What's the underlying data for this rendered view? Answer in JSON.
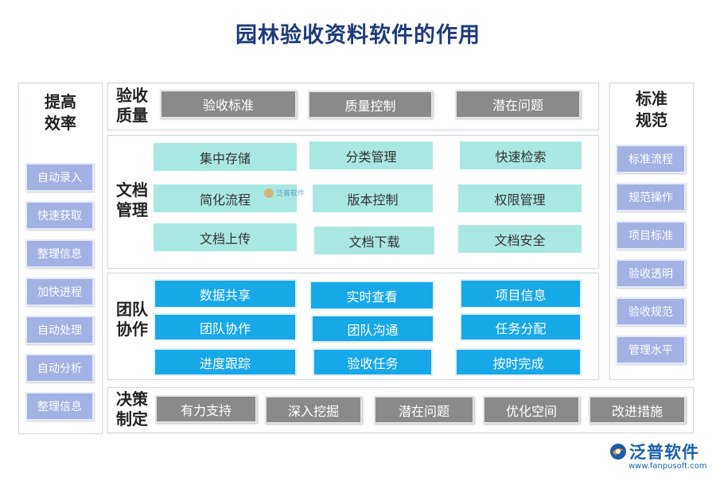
{
  "title": "园林验收资料软件的作用",
  "left_panel": {
    "title": "提高效率",
    "items": [
      "自动录入",
      "快速获取",
      "整理信息",
      "加快进程",
      "自动处理",
      "自动分析",
      "整理信息"
    ]
  },
  "right_panel": {
    "title": "标准规范",
    "items": [
      "标准流程",
      "规范操作",
      "项目标准",
      "验收透明",
      "验收规范",
      "管理水平"
    ]
  },
  "rows": {
    "quality": {
      "label": "验收质量",
      "items": [
        "验收标准",
        "质量控制",
        "潜在问题"
      ]
    },
    "docs": {
      "label": "文档管理",
      "items": [
        "集中存储",
        "分类管理",
        "快速检索",
        "简化流程",
        "版本控制",
        "权限管理",
        "文档上传",
        "文档下载",
        "文档安全"
      ]
    },
    "team": {
      "label": "团队协作",
      "items": [
        "数据共享",
        "实时查看",
        "项目信息",
        "团队协作",
        "团队沟通",
        "任务分配",
        "进度跟踪",
        "验收任务",
        "按时完成"
      ]
    },
    "decision": {
      "label": "决策制定",
      "items": [
        "有力支持",
        "深入挖掘",
        "潜在问题",
        "优化空间",
        "改进措施"
      ]
    }
  },
  "watermark": "泛普软件",
  "logo": {
    "name": "泛普软件",
    "url": "www.fanpusoft.com",
    "icon": "fanpu-logo-icon"
  },
  "colors": {
    "title": "#1e3a78",
    "gray_chip": "#8a8a8a",
    "teal_chip": "#a9e8e2",
    "blue_chip": "#17a8e8",
    "purple_chip": "#a3b1e4"
  }
}
